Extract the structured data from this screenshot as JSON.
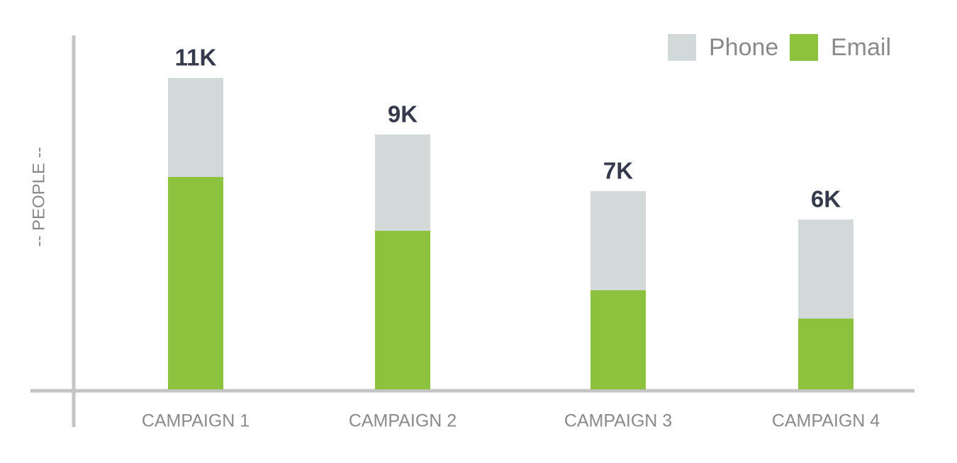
{
  "chart_data": {
    "type": "stacked-bar",
    "y_label": "-- PEOPLE --",
    "categories": [
      "CAMPAIGN 1",
      "CAMPAIGN 2",
      "CAMPAIGN 3",
      "CAMPAIGN 4"
    ],
    "series": [
      {
        "name": "Email",
        "color": "#8dc23f",
        "values": [
          7500,
          5600,
          3500,
          2500
        ]
      },
      {
        "name": "Phone",
        "color": "#d3d8d8",
        "values": [
          3500,
          3400,
          3500,
          3500
        ]
      }
    ],
    "total_labels": [
      "11K",
      "9K",
      "7K",
      "6K"
    ],
    "ylim": [
      0,
      12500
    ]
  }
}
